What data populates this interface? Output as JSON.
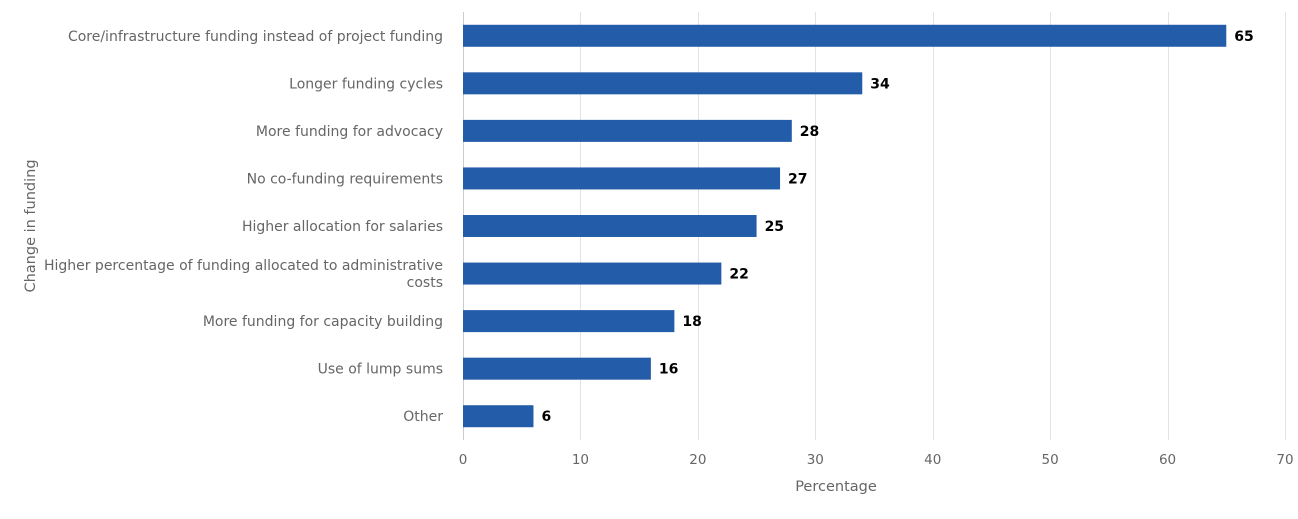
{
  "chart_data": {
    "type": "bar",
    "orientation": "horizontal",
    "categories": [
      [
        "Core/infrastructure funding instead of project funding"
      ],
      [
        "Longer funding cycles"
      ],
      [
        "More funding for advocacy"
      ],
      [
        "No co-funding requirements"
      ],
      [
        "Higher allocation for salaries"
      ],
      [
        "Higher percentage of funding allocated to administrative",
        "costs"
      ],
      [
        "More funding for capacity building"
      ],
      [
        "Use of lump sums"
      ],
      [
        "Other"
      ]
    ],
    "values": [
      65,
      34,
      28,
      27,
      25,
      22,
      18,
      16,
      6
    ],
    "data_labels": [
      "65",
      "34",
      "28",
      "27",
      "25",
      "22",
      "18",
      "16",
      "6"
    ],
    "xlabel": "Percentage",
    "ylabel": "Change in funding",
    "xlim": [
      0,
      70
    ],
    "ticks": [
      0,
      10,
      20,
      30,
      40,
      50,
      60,
      70
    ],
    "tick_labels": [
      "0",
      "10",
      "20",
      "30",
      "40",
      "50",
      "60",
      "70"
    ],
    "grid": true,
    "legend": "none",
    "bar_color": "#235ca8"
  }
}
